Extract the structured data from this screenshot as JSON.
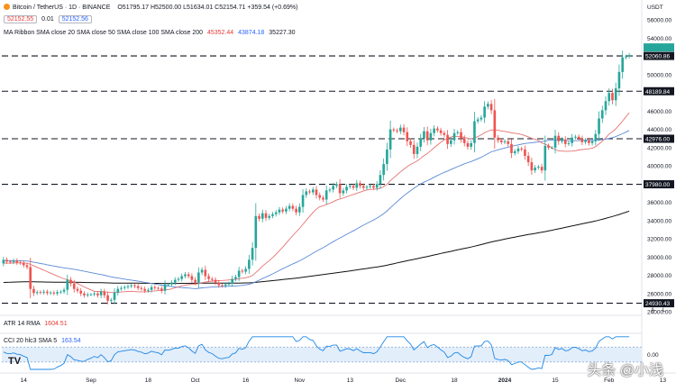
{
  "header": {
    "symbol_line": "Bitcoin / TetherUS · 1D · BINANCE",
    "ohlc": "O51795.17  H52500.00  L51634.01  C52154.71  +359.54 (+0.69%)",
    "bid": "52152.55",
    "spread": "0.01",
    "ask": "52152.56",
    "indicator_name": "MA Ribbon SMA close 20 SMA close 50 SMA close 100 SMA close 200",
    "ma20_value": "45352.44",
    "ma50_value": "43874.18",
    "ma200_value": "35227.30"
  },
  "panes": {
    "atr_label": "ATR 14 RMA",
    "atr_value": "1604.51",
    "cci_label": "CCI 20 hlc3 SMA 5",
    "cci_value": "163.54"
  },
  "watermark": "头条 @小浅",
  "logo": "TV",
  "colors": {
    "up": "#26a69a",
    "down": "#ef5350",
    "ma20": "#e57373",
    "ma50": "#5b8ad6",
    "ma200": "#111111",
    "cci": "#1e88e5"
  },
  "chart_data": {
    "type": "candlestick",
    "y_unit": "USDT",
    "ylim": [
      24000,
      58000
    ],
    "y_ticks": [
      24000,
      26000,
      28000,
      30000,
      32000,
      34000,
      36000,
      38000,
      40000,
      42000,
      44000,
      46000,
      48000,
      50000,
      52000,
      54000,
      56000
    ],
    "y_tick_labels": [
      "24000.00",
      "26000.00",
      "28000.00",
      "30000.00",
      "32000.00",
      "34000.00",
      "36000.00",
      "38000.00",
      "40000.00",
      "42000.00",
      "44000.00",
      "46000.00",
      "48000.00",
      "50000.00",
      "52000.00",
      "54000.00",
      "56000.00"
    ],
    "x_labels": [
      "14",
      "Sep",
      "18",
      "Oct",
      "16",
      "Nov",
      "13",
      "Dec",
      "18",
      "2024",
      "15",
      "Feb",
      "13"
    ],
    "x_label_index": [
      6,
      26,
      43,
      57,
      72,
      88,
      103,
      118,
      134,
      149,
      164,
      180,
      196
    ],
    "price_label": "USDT",
    "horizontal_levels": [
      {
        "value": 52060.86,
        "label": "52060.86"
      },
      {
        "value": 48189.84,
        "label": "48189.84"
      },
      {
        "value": 42976.0,
        "label": "42976.00"
      },
      {
        "value": 37980.0,
        "label": "37980.00"
      },
      {
        "value": 24930.43,
        "label": "24930.43"
      }
    ],
    "closes": [
      29700,
      29500,
      29450,
      29600,
      29400,
      29350,
      29100,
      28900,
      26500,
      26050,
      26150,
      26100,
      26200,
      26050,
      26100,
      26000,
      26150,
      26200,
      26400,
      27500,
      27100,
      26500,
      26300,
      26000,
      25800,
      25900,
      25900,
      26000,
      25800,
      26200,
      25800,
      25200,
      25300,
      26100,
      26500,
      26600,
      26700,
      26800,
      26900,
      26800,
      26600,
      26500,
      26300,
      26400,
      26700,
      26600,
      26550,
      26300,
      27000,
      27000,
      27200,
      27500,
      27600,
      27900,
      28100,
      27900,
      27500,
      27200,
      28300,
      28600,
      27900,
      27600,
      27500,
      27200,
      26900,
      26850,
      27000,
      27100,
      27600,
      27800,
      28500,
      28400,
      28700,
      29700,
      31000,
      34500,
      34200,
      34800,
      34300,
      34500,
      34700,
      34900,
      35200,
      35000,
      35300,
      35600,
      35300,
      34900,
      35500,
      36800,
      37200,
      37100,
      37400,
      36800,
      36500,
      36300,
      37300,
      37400,
      37800,
      38000,
      37000,
      37300,
      37700,
      37800,
      37600,
      38100,
      37800,
      37600,
      37700,
      37800,
      37600,
      38000,
      39000,
      40200,
      41800,
      44000,
      43900,
      43800,
      44200,
      43700,
      42700,
      42300,
      41300,
      42100,
      43000,
      43800,
      42800,
      43600,
      44100,
      43900,
      43600,
      43400,
      42400,
      42800,
      43600,
      43700,
      43000,
      42500,
      42100,
      42500,
      44900,
      45100,
      45300,
      46500,
      46800,
      46100,
      43100,
      42800,
      42600,
      42700,
      42400,
      41400,
      41600,
      41900,
      41800,
      41100,
      40400,
      39500,
      39800,
      39900,
      39500,
      42200,
      42000,
      42000,
      43300,
      42700,
      42900,
      42400,
      42500,
      43100,
      43200,
      43000,
      42600,
      42800,
      42500,
      42700,
      43500,
      45200,
      46100,
      47100,
      48000,
      47200,
      48500,
      50300,
      51900,
      52000,
      52154
    ],
    "series": [
      {
        "name": "SMA 20",
        "value_label": "45352.44"
      },
      {
        "name": "SMA 50",
        "value_label": "43874.18"
      },
      {
        "name": "SMA 200",
        "value_label": "35227.30"
      }
    ],
    "atr": {
      "name": "ATR 14 RMA",
      "value": 1604.51
    },
    "cci": {
      "name": "CCI 20 hlc3 SMA 5",
      "value": 163.54,
      "ylim": [
        -200,
        250
      ],
      "ticks": [
        "0.00"
      ]
    }
  }
}
